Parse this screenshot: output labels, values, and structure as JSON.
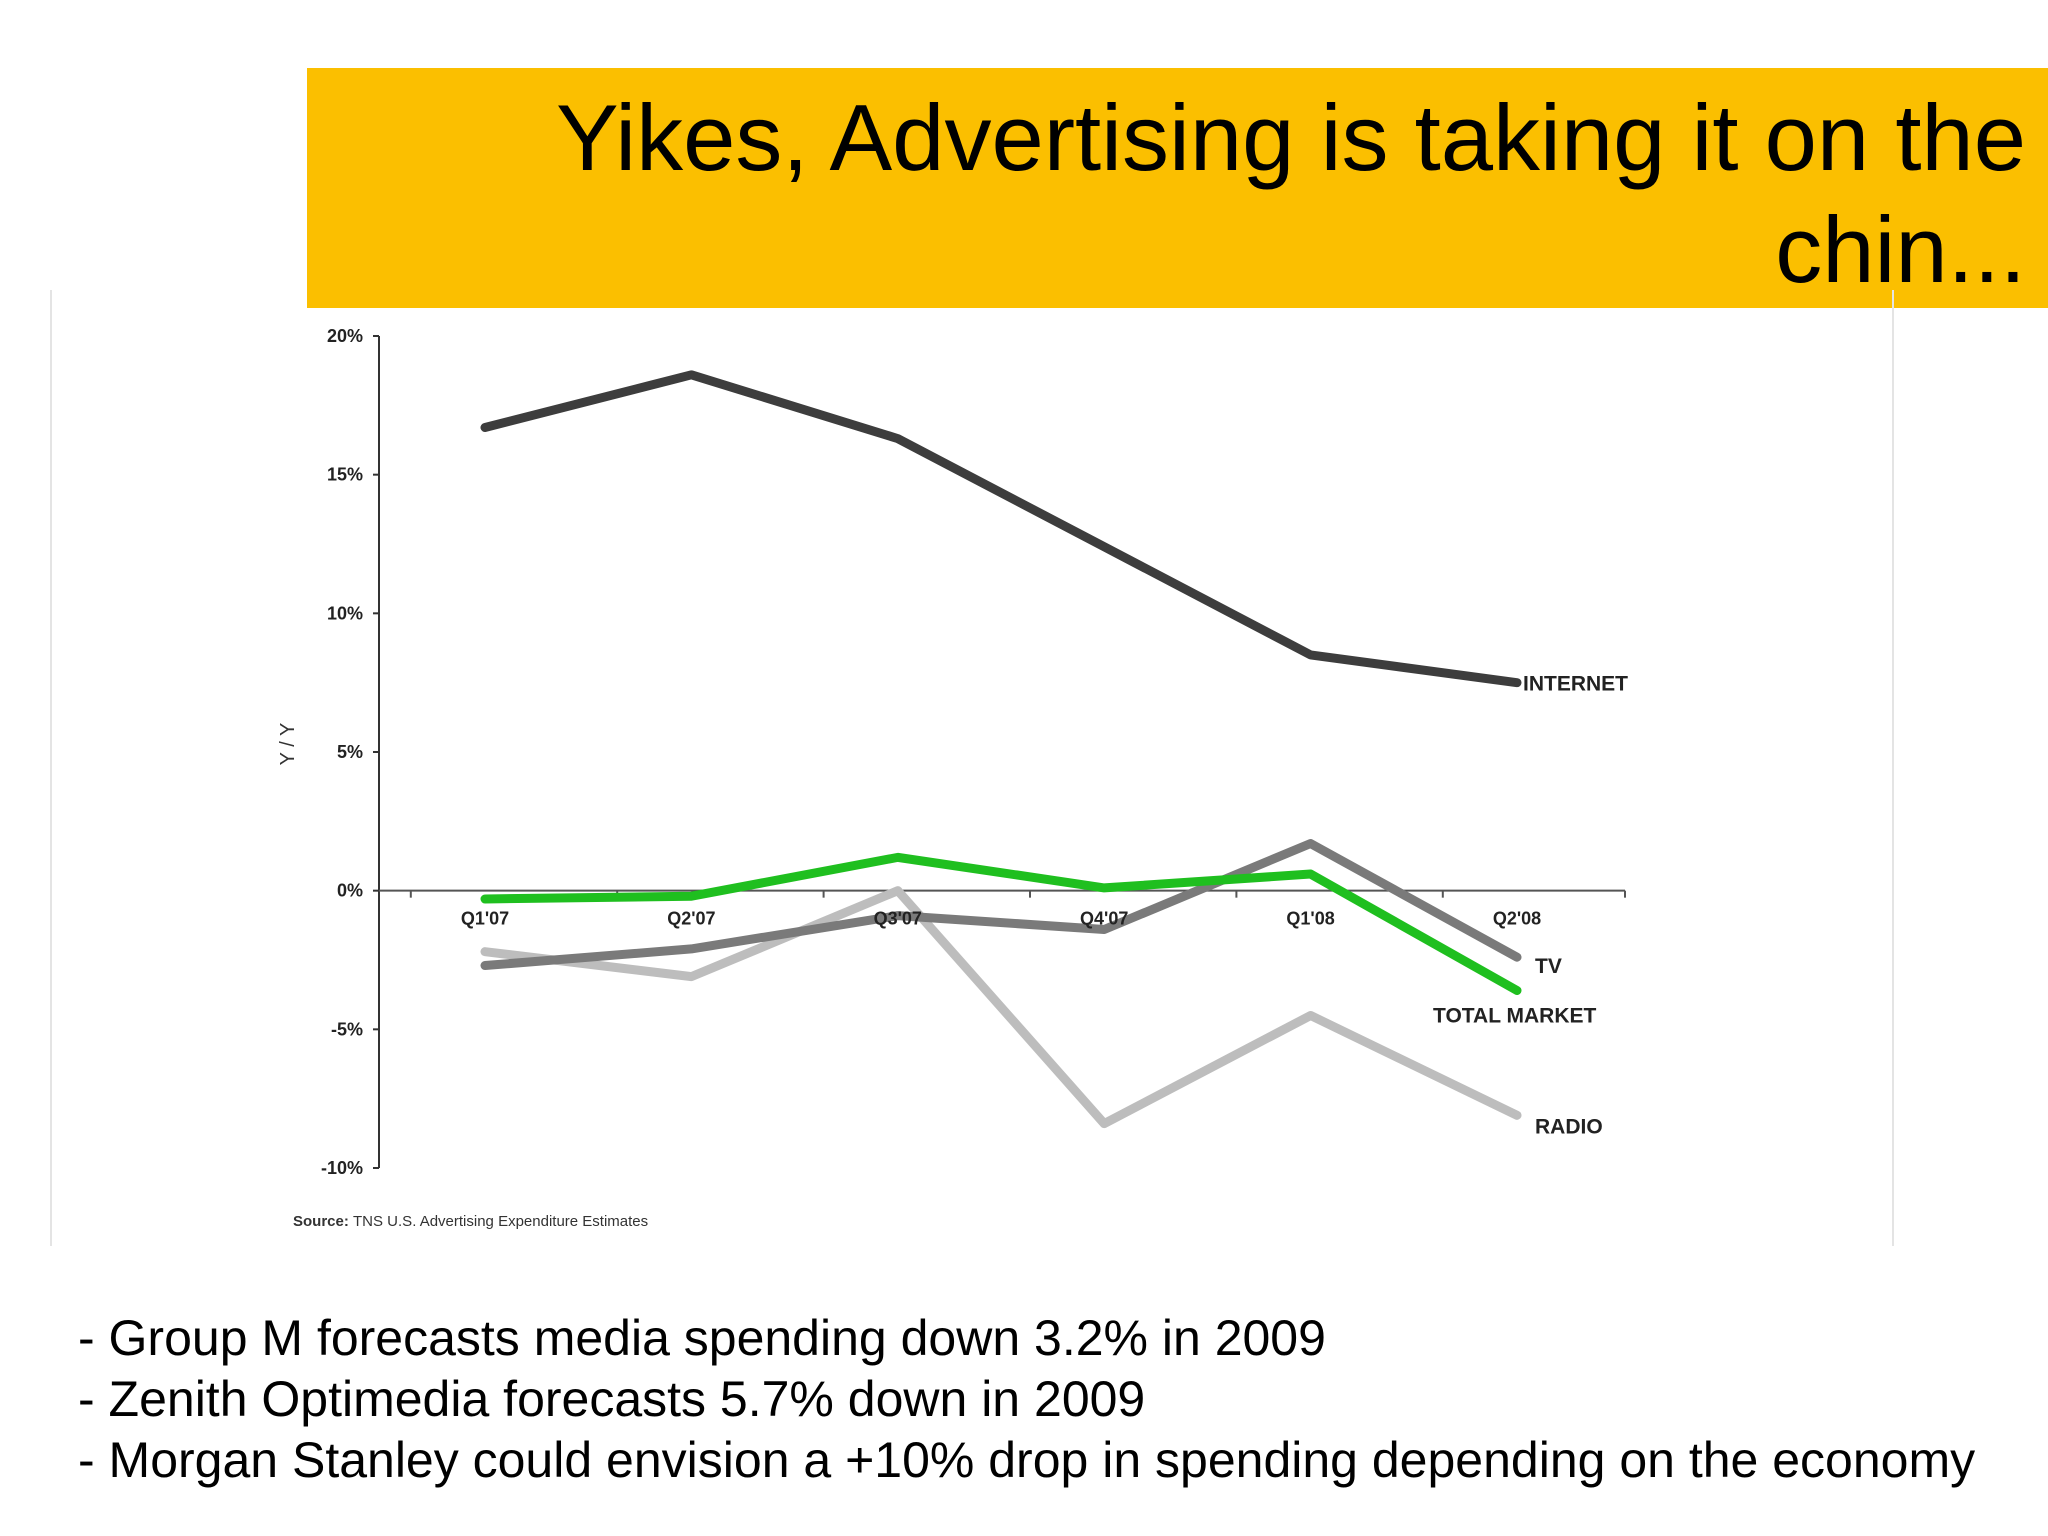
{
  "slide": {
    "title": "Yikes, Advertising is taking it on the chin...",
    "title_bg": "#fbbf00",
    "bullets": [
      "- Group M forecasts media spending down 3.2% in 2009",
      "- Zenith Optimedia forecasts 5.7% down in 2009",
      "- Morgan Stanley could envision a +10% drop in spending depending on the economy"
    ]
  },
  "chart_data": {
    "type": "line",
    "title": "",
    "xlabel": "",
    "ylabel": "Y / Y",
    "categories": [
      "Q1'07",
      "Q2'07",
      "Q3'07",
      "Q4'07",
      "Q1'08",
      "Q2'08"
    ],
    "ylim": [
      -10,
      20
    ],
    "yticks": [
      20,
      15,
      10,
      5,
      0,
      -5,
      -10
    ],
    "ytick_labels": [
      "20%",
      "15%",
      "10%",
      "5%",
      "0%",
      "-5%",
      "-10%"
    ],
    "grid": false,
    "legend": "none",
    "series": [
      {
        "name": "INTERNET",
        "values": [
          16.7,
          18.6,
          16.3,
          12.4,
          8.5,
          7.5
        ],
        "color": "#3d3d3d"
      },
      {
        "name": "TV",
        "values": [
          -2.7,
          -2.1,
          -0.9,
          -1.4,
          1.7,
          -2.4
        ],
        "color": "#7a7a7a"
      },
      {
        "name": "TOTAL MARKET",
        "values": [
          -0.3,
          -0.2,
          1.2,
          0.1,
          0.6,
          -3.6
        ],
        "color": "#1fbf1f"
      },
      {
        "name": "RADIO",
        "values": [
          -2.2,
          -3.1,
          0.0,
          -8.4,
          -4.5,
          -8.1
        ],
        "color": "#bdbdbd"
      }
    ],
    "source_prefix": "Source:",
    "source": "TNS U.S. Advertising Expenditure Estimates"
  }
}
